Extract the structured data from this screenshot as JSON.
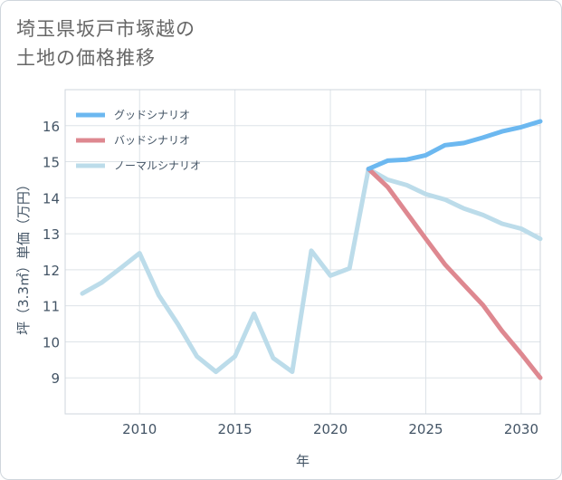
{
  "title": {
    "line1": "埼玉県坂戸市塚越の",
    "line2": "土地の価格推移"
  },
  "chart_data": {
    "type": "line",
    "xlabel": "年",
    "ylabel": "坪（3.3㎡）単価（万円）",
    "xlim": [
      2006.1,
      2031
    ],
    "ylim": [
      8,
      17
    ],
    "xticks": [
      2010,
      2015,
      2020,
      2025,
      2030
    ],
    "yticks": [
      9,
      10,
      11,
      12,
      13,
      14,
      15,
      16
    ],
    "legend_position": "top-left",
    "series": [
      {
        "name": "グッドシナリオ",
        "color": "#6cb8f0",
        "x": [
          2022,
          2023,
          2024,
          2025,
          2026,
          2027,
          2028,
          2029,
          2030,
          2031
        ],
        "y": [
          14.8,
          15.03,
          15.06,
          15.18,
          15.46,
          15.52,
          15.67,
          15.84,
          15.96,
          16.12
        ]
      },
      {
        "name": "バッドシナリオ",
        "color": "#de8890",
        "x": [
          2022,
          2023,
          2024,
          2025,
          2026,
          2027,
          2028,
          2029,
          2030,
          2031
        ],
        "y": [
          14.8,
          14.3,
          13.58,
          12.86,
          12.15,
          11.58,
          11.02,
          10.3,
          9.67,
          9.0
        ]
      },
      {
        "name": "ノーマルシナリオ",
        "color": "#bcdcea",
        "x": [
          2007,
          2008,
          2009,
          2010,
          2011,
          2012,
          2013,
          2014,
          2015,
          2016,
          2017,
          2018,
          2019,
          2020,
          2021,
          2022,
          2023,
          2024,
          2025,
          2026,
          2027,
          2028,
          2029,
          2030,
          2031
        ],
        "y": [
          11.34,
          11.64,
          12.04,
          12.46,
          11.3,
          10.5,
          9.6,
          9.17,
          9.6,
          10.78,
          9.55,
          9.17,
          12.53,
          11.84,
          12.04,
          14.8,
          14.5,
          14.35,
          14.1,
          13.95,
          13.7,
          13.52,
          13.28,
          13.14,
          12.86
        ]
      }
    ]
  }
}
